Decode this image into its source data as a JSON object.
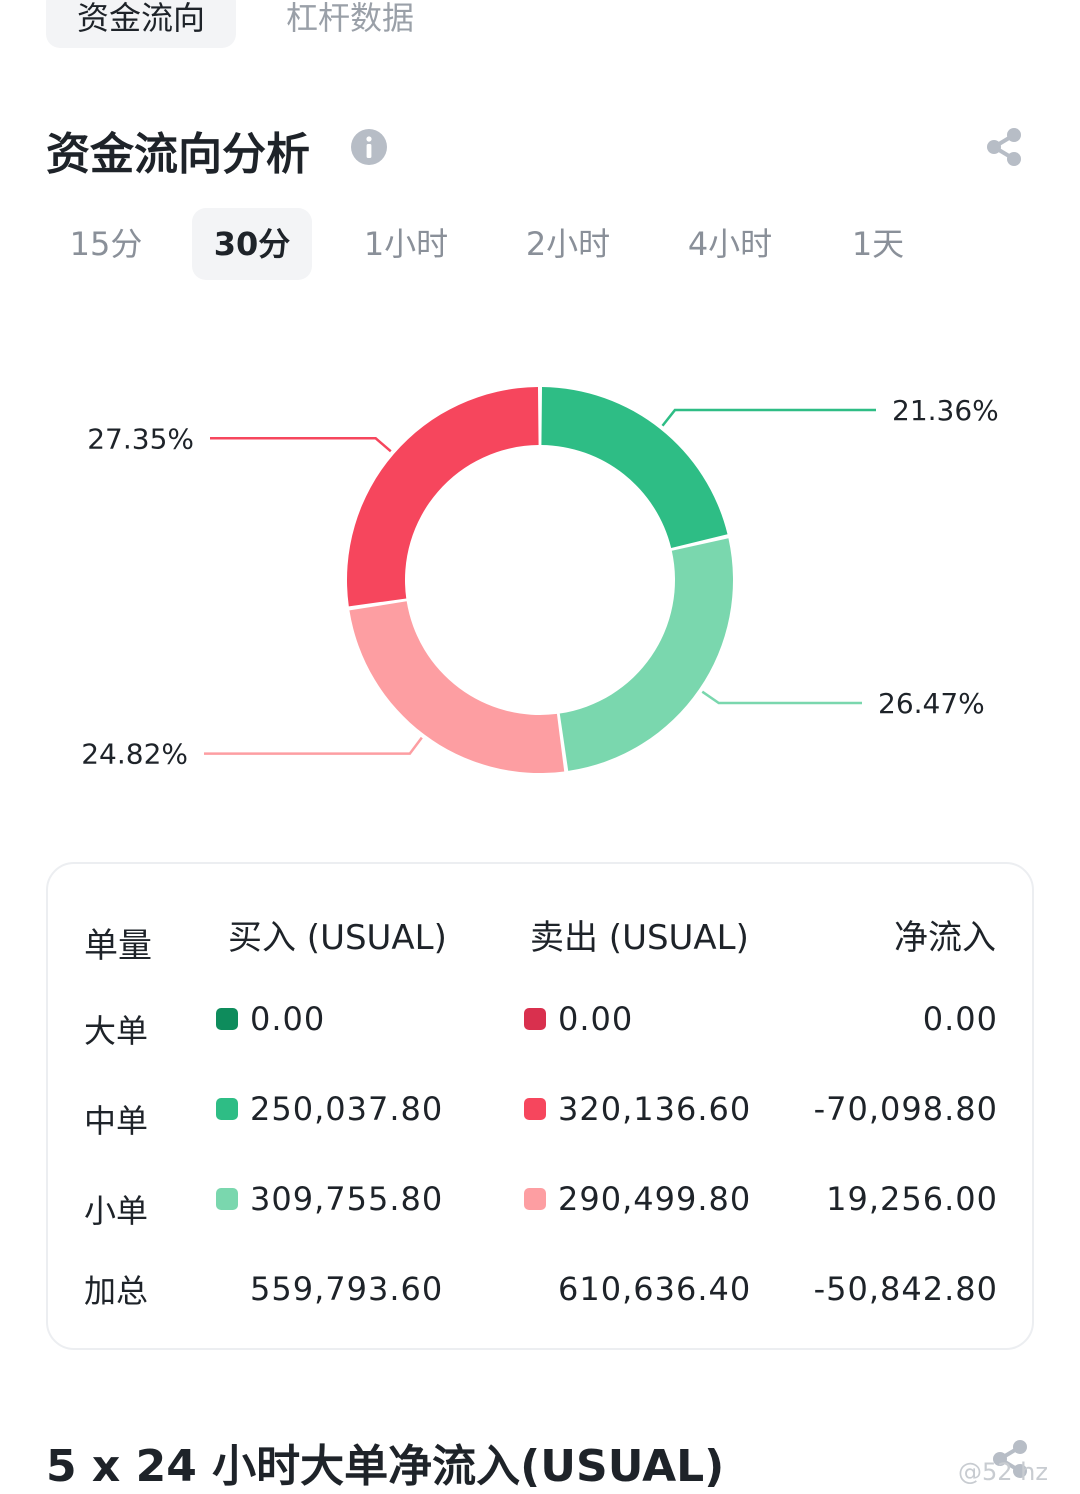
{
  "top_tabs": [
    {
      "label": "资金流向",
      "active": true
    },
    {
      "label": "杠杆数据",
      "active": false
    }
  ],
  "section": {
    "title": "资金流向分析"
  },
  "periods": [
    {
      "label": "15分",
      "active": false
    },
    {
      "label": "30分",
      "active": true
    },
    {
      "label": "1小时",
      "active": false
    },
    {
      "label": "2小时",
      "active": false
    },
    {
      "label": "4小时",
      "active": false
    },
    {
      "label": "1天",
      "active": false
    }
  ],
  "chart_data": {
    "type": "pie",
    "donut": true,
    "slices": [
      {
        "label": "21.36%",
        "value": 21.36,
        "color": "#2ebd85"
      },
      {
        "label": "26.47%",
        "value": 26.47,
        "color": "#7ad7ae"
      },
      {
        "label": "24.82%",
        "value": 24.82,
        "color": "#fd9ea2"
      },
      {
        "label": "27.35%",
        "value": 27.35,
        "color": "#f6465d"
      }
    ]
  },
  "table": {
    "headers": [
      "单量",
      "买入 (USUAL)",
      "卖出 (USUAL)",
      "净流入"
    ],
    "rows": [
      {
        "label": "大单",
        "buy": "0.00",
        "sell": "0.00",
        "net": "0.00",
        "buy_color": "#0e8c5c",
        "sell_color": "#d9304e"
      },
      {
        "label": "中单",
        "buy": "250,037.80",
        "sell": "320,136.60",
        "net": "-70,098.80",
        "buy_color": "#2ebd85",
        "sell_color": "#f6465d"
      },
      {
        "label": "小单",
        "buy": "309,755.80",
        "sell": "290,499.80",
        "net": "19,256.00",
        "buy_color": "#7ad7ae",
        "sell_color": "#fd9ea2"
      },
      {
        "label": "加总",
        "buy": "559,793.60",
        "sell": "610,636.40",
        "net": "-50,842.80"
      }
    ]
  },
  "bottom": {
    "title": "5 x 24 小时大单净流入(USUAL)"
  },
  "watermark": "@52 hz"
}
